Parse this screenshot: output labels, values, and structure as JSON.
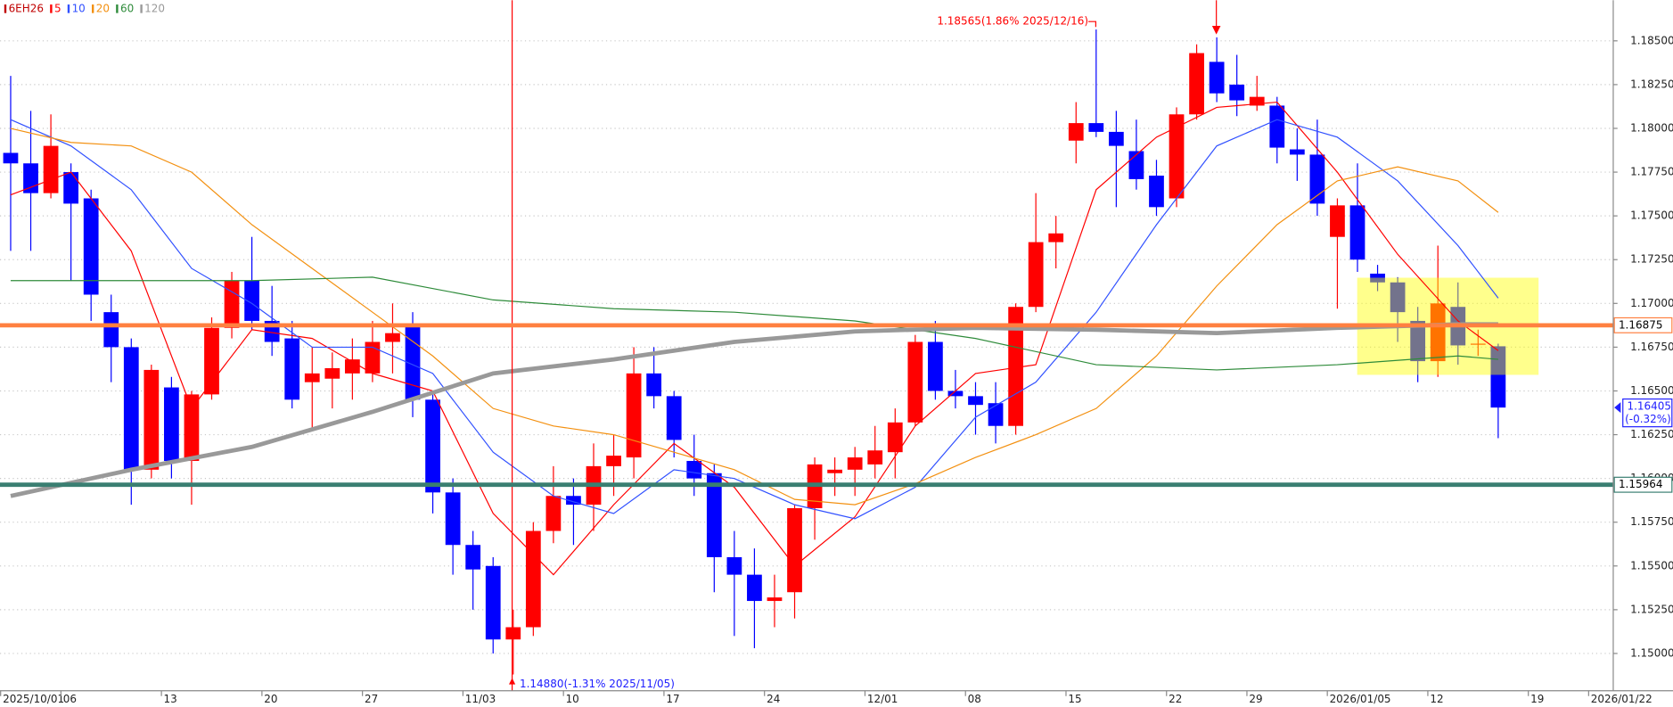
{
  "chart_data": {
    "type": "candlestick",
    "name": "6EH26",
    "color": "#c00000",
    "up_color": "#ff0000",
    "down_color": "#0000ff",
    "categories": [
      "2025/10/01",
      null,
      null,
      "06",
      null,
      null,
      null,
      null,
      "13",
      null,
      null,
      null,
      null,
      "20",
      null,
      null,
      null,
      null,
      "27",
      null,
      null,
      null,
      null,
      "11/03",
      null,
      null,
      null,
      null,
      "10",
      null,
      null,
      null,
      null,
      "17",
      null,
      null,
      null,
      null,
      "24",
      null,
      null,
      null,
      null,
      "12/01",
      null,
      null,
      null,
      null,
      "08",
      null,
      null,
      null,
      null,
      "15",
      null,
      null,
      null,
      null,
      "22",
      null,
      null,
      null,
      "29",
      null,
      null,
      null,
      "2026/01/05",
      null,
      null,
      null,
      null,
      "12",
      null,
      null,
      null,
      null,
      "19",
      null,
      null,
      "2026/01/22"
    ],
    "open": [
      1.1786,
      1.178,
      1.1763,
      1.1775,
      1.176,
      1.1695,
      1.1675,
      1.1605,
      1.1652,
      1.161,
      1.1648,
      1.1686,
      1.1713,
      1.169,
      1.168,
      1.1655,
      1.1657,
      1.166,
      1.166,
      1.1678,
      1.1688,
      1.1645,
      1.1592,
      1.1562,
      1.155,
      1.1508,
      1.1515,
      1.157,
      1.159,
      1.1585,
      1.1607,
      1.1612,
      1.166,
      1.1647,
      1.161,
      1.1603,
      1.1555,
      1.1545,
      1.153,
      1.1535,
      1.1583,
      1.1603,
      1.1605,
      1.1608,
      1.1615,
      1.1632,
      1.1678,
      1.165,
      1.1647,
      1.1643,
      1.163,
      1.1698,
      1.1735,
      1.1793,
      1.1803,
      1.1798,
      1.1787,
      1.1773,
      1.176,
      1.1808,
      1.1838,
      1.1825,
      1.1813,
      1.1813,
      1.1788,
      1.1785,
      1.1738,
      1.1756,
      1.1717,
      1.1712,
      1.169,
      1.1667,
      1.1698,
      1.1677,
      1.16755,
      null,
      null,
      null,
      null,
      null
    ],
    "high": [
      1.183,
      1.181,
      1.1808,
      1.178,
      1.1765,
      1.1705,
      1.168,
      1.1665,
      1.1658,
      1.165,
      1.1692,
      1.1718,
      1.1738,
      1.171,
      1.169,
      1.1675,
      1.1672,
      1.168,
      1.169,
      1.17,
      1.1695,
      1.165,
      1.16,
      1.157,
      1.1555,
      1.1525,
      1.1575,
      1.1607,
      1.16,
      1.162,
      1.1625,
      1.1675,
      1.1675,
      1.165,
      1.1625,
      1.1608,
      1.157,
      1.156,
      1.1545,
      1.1585,
      1.1612,
      1.1612,
      1.1618,
      1.163,
      1.164,
      1.1682,
      1.169,
      1.1662,
      1.1655,
      1.1655,
      1.17,
      1.1763,
      1.175,
      1.1815,
      1.18565,
      1.181,
      1.1805,
      1.1782,
      1.1812,
      1.1848,
      1.1852,
      1.1842,
      1.183,
      1.1818,
      1.18,
      1.1805,
      1.176,
      1.178,
      1.1722,
      1.1715,
      1.1698,
      1.1733,
      1.1712,
      1.1685,
      1.1677,
      null,
      null,
      null,
      null,
      null
    ],
    "low": [
      1.173,
      1.173,
      1.176,
      1.1713,
      1.169,
      1.1655,
      1.1585,
      1.16,
      1.16,
      1.1585,
      1.1645,
      1.168,
      1.1685,
      1.167,
      1.164,
      1.1628,
      1.164,
      1.1645,
      1.1655,
      1.166,
      1.1635,
      1.158,
      1.1545,
      1.1525,
      1.15,
      1.1488,
      1.151,
      1.1563,
      1.1562,
      1.157,
      1.159,
      1.16,
      1.164,
      1.1612,
      1.159,
      1.1535,
      1.151,
      1.1503,
      1.1515,
      1.152,
      1.1565,
      1.159,
      1.159,
      1.16,
      1.16,
      1.163,
      1.1645,
      1.164,
      1.1625,
      1.162,
      1.1625,
      1.1695,
      1.172,
      1.178,
      1.1795,
      1.1755,
      1.1765,
      1.175,
      1.1755,
      1.1805,
      1.1815,
      1.1807,
      1.181,
      1.178,
      1.177,
      1.175,
      1.1697,
      1.1718,
      1.1707,
      1.1678,
      1.1655,
      1.1658,
      1.1665,
      1.167,
      1.1623,
      null,
      null,
      null,
      null,
      null
    ],
    "close": [
      1.178,
      1.1763,
      1.179,
      1.1757,
      1.1705,
      1.1675,
      1.1605,
      1.1662,
      1.161,
      1.1648,
      1.1686,
      1.1713,
      1.169,
      1.1678,
      1.1645,
      1.166,
      1.1663,
      1.1668,
      1.1678,
      1.1683,
      1.1645,
      1.1592,
      1.1562,
      1.1548,
      1.1508,
      1.1515,
      1.157,
      1.159,
      1.1585,
      1.1607,
      1.1613,
      1.166,
      1.1647,
      1.1622,
      1.16,
      1.1555,
      1.1545,
      1.153,
      1.1532,
      1.1583,
      1.1608,
      1.1605,
      1.1612,
      1.1616,
      1.1632,
      1.1678,
      1.165,
      1.1647,
      1.1642,
      1.163,
      1.1698,
      1.1735,
      1.174,
      1.1803,
      1.1798,
      1.179,
      1.1771,
      1.1755,
      1.1808,
      1.1843,
      1.182,
      1.1816,
      1.1818,
      1.1789,
      1.1785,
      1.1757,
      1.1756,
      1.1725,
      1.1712,
      1.1695,
      1.1667,
      1.17,
      1.1676,
      1.1677,
      1.16405,
      null,
      null,
      null,
      null,
      null
    ],
    "moving_averages": [
      {
        "name": "5",
        "color": "#ff0000",
        "x": [
          0,
          3,
          6,
          9,
          12,
          15,
          18,
          21,
          24,
          27,
          30,
          33,
          36,
          39,
          42,
          45,
          48,
          51,
          54,
          57,
          60,
          63,
          66,
          69,
          72,
          74
        ],
        "values": [
          1.1762,
          1.1775,
          1.173,
          1.164,
          1.1685,
          1.168,
          1.166,
          1.165,
          1.158,
          1.1545,
          1.1585,
          1.162,
          1.1595,
          1.155,
          1.1578,
          1.163,
          1.166,
          1.1665,
          1.1765,
          1.1795,
          1.1812,
          1.1815,
          1.1775,
          1.1728,
          1.169,
          1.1673
        ]
      },
      {
        "name": "10",
        "color": "#3050ff",
        "x": [
          0,
          3,
          6,
          9,
          12,
          15,
          18,
          21,
          24,
          27,
          30,
          33,
          36,
          39,
          42,
          45,
          48,
          51,
          54,
          57,
          60,
          63,
          66,
          69,
          72,
          74
        ],
        "values": [
          1.1805,
          1.179,
          1.1765,
          1.172,
          1.17,
          1.1675,
          1.1675,
          1.166,
          1.1615,
          1.159,
          1.158,
          1.1605,
          1.16,
          1.1585,
          1.1577,
          1.1595,
          1.1635,
          1.1655,
          1.1695,
          1.1745,
          1.179,
          1.1805,
          1.1795,
          1.177,
          1.1733,
          1.1703
        ]
      },
      {
        "name": "20",
        "color": "#f39010",
        "x": [
          0,
          3,
          6,
          9,
          12,
          15,
          18,
          21,
          24,
          27,
          30,
          33,
          36,
          39,
          42,
          45,
          48,
          51,
          54,
          57,
          60,
          63,
          66,
          69,
          72,
          74
        ],
        "values": [
          1.18,
          1.1792,
          1.179,
          1.1775,
          1.1745,
          1.172,
          1.1695,
          1.167,
          1.164,
          1.163,
          1.1625,
          1.1615,
          1.1605,
          1.1588,
          1.1585,
          1.1597,
          1.1612,
          1.1625,
          1.164,
          1.167,
          1.171,
          1.1745,
          1.177,
          1.1778,
          1.177,
          1.1752
        ]
      },
      {
        "name": "60",
        "color": "#2e8b3a",
        "x": [
          0,
          6,
          12,
          18,
          24,
          30,
          36,
          42,
          48,
          54,
          60,
          66,
          72,
          74
        ],
        "values": [
          1.1713,
          1.1713,
          1.1713,
          1.1715,
          1.1702,
          1.1697,
          1.1695,
          1.169,
          1.168,
          1.1665,
          1.1662,
          1.1665,
          1.167,
          1.1668
        ]
      },
      {
        "name": "120",
        "color": "#999999",
        "x": [
          0,
          6,
          12,
          18,
          24,
          30,
          36,
          42,
          48,
          54,
          60,
          66,
          72,
          74
        ],
        "values": [
          1.159,
          1.1605,
          1.1618,
          1.1638,
          1.166,
          1.1668,
          1.1678,
          1.1684,
          1.1686,
          1.1685,
          1.1683,
          1.1686,
          1.1688,
          1.1688
        ]
      }
    ],
    "ylim": [
      1.14787,
      1.18732
    ],
    "yticks": [
      {
        "value": 1.15,
        "label": "1.15000"
      },
      {
        "value": 1.1525,
        "label": "1.15250"
      },
      {
        "value": 1.155,
        "label": "1.15500"
      },
      {
        "value": 1.1575,
        "label": "1.15750"
      },
      {
        "value": 1.16,
        "label": "1.16000"
      },
      {
        "value": 1.1625,
        "label": "1.16250"
      },
      {
        "value": 1.165,
        "label": "1.16500"
      },
      {
        "value": 1.1675,
        "label": "1.16750"
      },
      {
        "value": 1.17,
        "label": "1.17000"
      },
      {
        "value": 1.1725,
        "label": "1.17250"
      },
      {
        "value": 1.175,
        "label": "1.17500"
      },
      {
        "value": 1.1775,
        "label": "1.17750"
      },
      {
        "value": 1.18,
        "label": "1.18000"
      },
      {
        "value": 1.1825,
        "label": "1.18250"
      },
      {
        "value": 1.185,
        "label": "1.18500"
      }
    ],
    "grid": true,
    "hlines": [
      {
        "value": 1.16875,
        "color": "#ff8040"
      },
      {
        "value": 1.15964,
        "color": "#3a7f72"
      }
    ],
    "last_price": 1.16405,
    "last_change": {
      "value": -0.32,
      "label": "(-0.32%)"
    },
    "annotations": [
      {
        "label": "1.18565(1.86% 2025/12/16)"
      },
      {
        "label": "1.14880(-1.31% 2025/11/05)"
      }
    ]
  }
}
